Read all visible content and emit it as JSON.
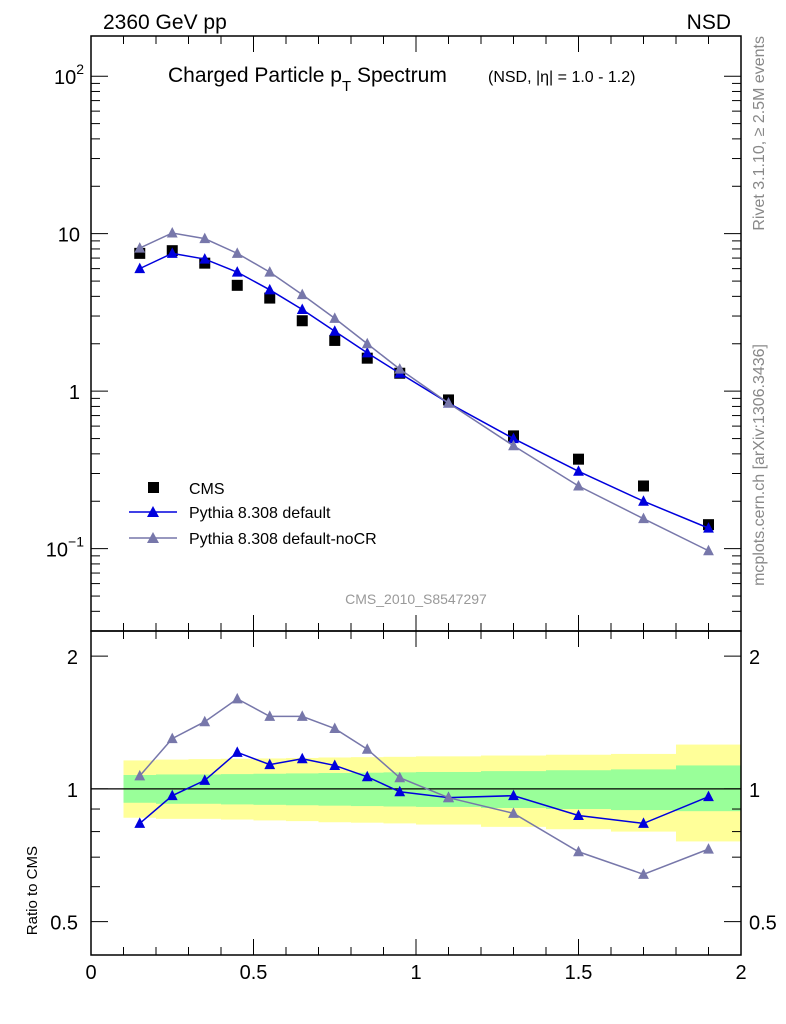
{
  "header": {
    "left": "2360 GeV pp",
    "right": "NSD"
  },
  "side_labels": {
    "rivet": "Rivet 3.1.10, ≥ 2.5M events",
    "mcplots": "mcplots.cern.ch [arXiv:1306.3436]"
  },
  "chart_data": [
    {
      "type": "scatter",
      "title_main": "Charged Particle p",
      "title_sub": "T",
      "title_main2": " Spectrum",
      "title_extra": "(NSD, |η| = 1.0 - 1.2)",
      "watermark": "CMS_2010_S8547297",
      "xlim": [
        0,
        2
      ],
      "ylim": [
        0.03,
        180
      ],
      "yscale": "log",
      "y_ticks": [
        {
          "value": 0.1,
          "base": "10",
          "exp": "−1"
        },
        {
          "value": 1,
          "label": "1"
        },
        {
          "value": 10,
          "label": "10"
        },
        {
          "value": 100,
          "base": "10",
          "exp": "2"
        }
      ],
      "series": [
        {
          "name": "CMS",
          "marker": "square",
          "color": "#000000",
          "x": [
            0.15,
            0.25,
            0.35,
            0.45,
            0.55,
            0.65,
            0.75,
            0.85,
            0.95,
            1.1,
            1.3,
            1.5,
            1.7,
            1.9
          ],
          "y": [
            7.5,
            7.8,
            6.5,
            4.7,
            3.9,
            2.8,
            2.1,
            1.62,
            1.3,
            0.88,
            0.52,
            0.37,
            0.25,
            0.142
          ]
        },
        {
          "name": "Pythia 8.308 default",
          "marker": "triangle",
          "color": "#0000dd",
          "x": [
            0.15,
            0.25,
            0.35,
            0.45,
            0.55,
            0.65,
            0.75,
            0.85,
            0.95,
            1.1,
            1.3,
            1.5,
            1.7,
            1.9
          ],
          "y": [
            6.0,
            7.5,
            6.9,
            5.7,
            4.4,
            3.3,
            2.4,
            1.75,
            1.3,
            0.84,
            0.5,
            0.31,
            0.2,
            0.135
          ]
        },
        {
          "name": "Pythia 8.308 default-noCR",
          "marker": "triangle",
          "color": "#7777aa",
          "x": [
            0.15,
            0.25,
            0.35,
            0.45,
            0.55,
            0.65,
            0.75,
            0.85,
            0.95,
            1.1,
            1.3,
            1.5,
            1.7,
            1.9
          ],
          "y": [
            8.1,
            10.1,
            9.3,
            7.5,
            5.7,
            4.1,
            2.9,
            2.0,
            1.38,
            0.84,
            0.45,
            0.25,
            0.155,
            0.097
          ]
        }
      ]
    },
    {
      "type": "line",
      "ylabel": "Ratio to CMS",
      "xlim": [
        0,
        2
      ],
      "ylim": [
        0.42,
        2.28
      ],
      "yscale": "log",
      "x_ticks": [
        "0",
        "0.5",
        "1",
        "1.5",
        "2"
      ],
      "y_ticks": [
        "0.5",
        "1",
        "2"
      ],
      "bands": {
        "x_edges": [
          0.1,
          0.2,
          0.3,
          0.4,
          0.5,
          0.6,
          0.7,
          0.8,
          0.9,
          1.0,
          1.2,
          1.4,
          1.6,
          1.8,
          2.0
        ],
        "green_lo": [
          0.93,
          0.925,
          0.925,
          0.922,
          0.92,
          0.918,
          0.916,
          0.914,
          0.912,
          0.91,
          0.905,
          0.9,
          0.895,
          0.89
        ],
        "green_hi": [
          1.075,
          1.078,
          1.078,
          1.08,
          1.082,
          1.084,
          1.086,
          1.088,
          1.09,
          1.092,
          1.097,
          1.102,
          1.107,
          1.13
        ],
        "yellow_lo": [
          0.86,
          0.855,
          0.855,
          0.852,
          0.848,
          0.845,
          0.84,
          0.838,
          0.835,
          0.83,
          0.82,
          0.81,
          0.8,
          0.76
        ],
        "yellow_hi": [
          1.16,
          1.165,
          1.168,
          1.17,
          1.172,
          1.175,
          1.178,
          1.18,
          1.182,
          1.185,
          1.19,
          1.195,
          1.2,
          1.26
        ],
        "green_color": "#99ff99",
        "yellow_color": "#ffff99"
      },
      "series": [
        {
          "name": "Pythia 8.308 default",
          "color": "#0000dd",
          "x": [
            0.15,
            0.25,
            0.35,
            0.45,
            0.55,
            0.65,
            0.75,
            0.85,
            0.95,
            1.1,
            1.3,
            1.5,
            1.7,
            1.9
          ],
          "y": [
            0.835,
            0.965,
            1.045,
            1.21,
            1.135,
            1.17,
            1.13,
            1.065,
            0.985,
            0.955,
            0.965,
            0.87,
            0.835,
            0.96
          ]
        },
        {
          "name": "Pythia 8.308 default-noCR",
          "color": "#7777aa",
          "x": [
            0.15,
            0.25,
            0.35,
            0.45,
            0.55,
            0.65,
            0.75,
            0.85,
            0.95,
            1.1,
            1.3,
            1.5,
            1.7,
            1.9
          ],
          "y": [
            1.07,
            1.3,
            1.42,
            1.6,
            1.46,
            1.46,
            1.37,
            1.23,
            1.06,
            0.955,
            0.88,
            0.72,
            0.64,
            0.73
          ]
        }
      ]
    }
  ]
}
